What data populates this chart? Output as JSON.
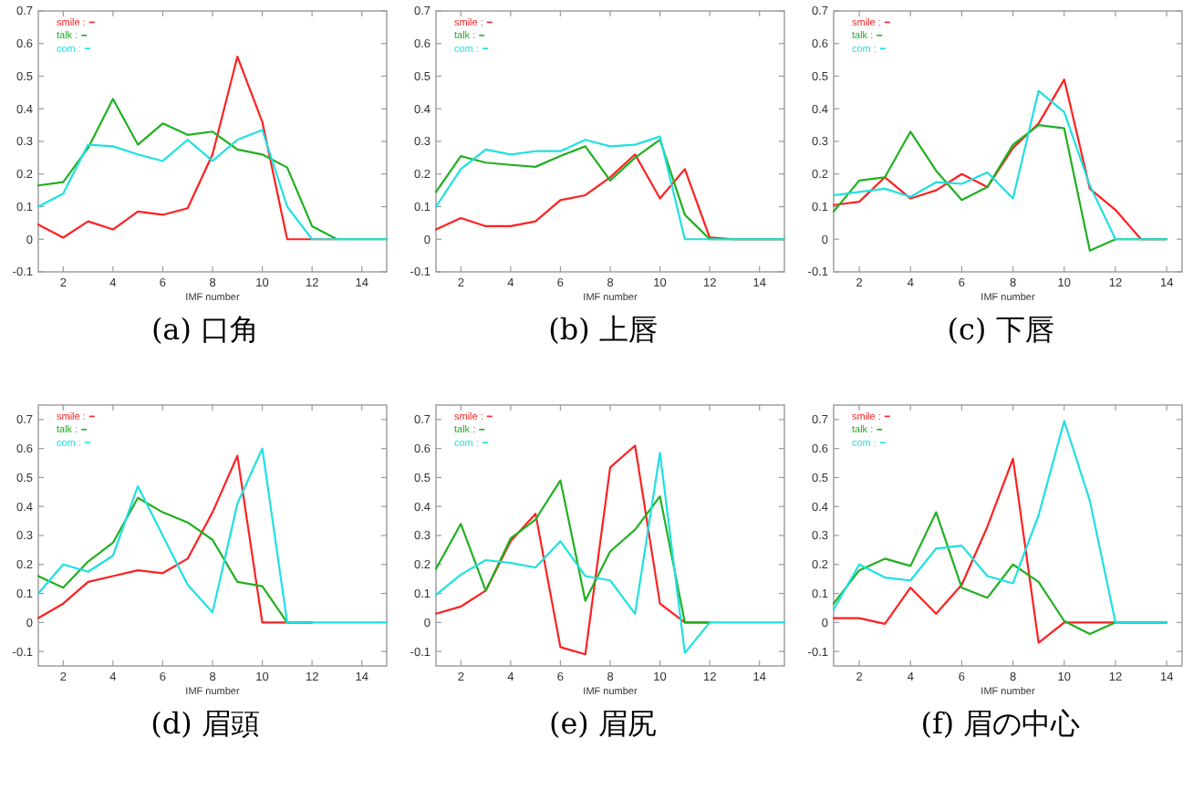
{
  "chart_data": [
    {
      "type": "line",
      "title": "(a) 口角",
      "xlabel": "IMF number",
      "legend": "top left",
      "xlim": [
        1,
        15
      ],
      "xticks": [
        2,
        4,
        6,
        8,
        10,
        12,
        14
      ],
      "ylim": [
        -0.1,
        0.7
      ],
      "yticks": [
        -0.1,
        0,
        0.1,
        0.2,
        0.3,
        0.4,
        0.5,
        0.6,
        0.7
      ],
      "x": [
        1,
        2,
        3,
        4,
        5,
        6,
        7,
        8,
        9,
        10,
        11,
        12,
        13,
        14,
        15
      ],
      "series": [
        {
          "name": "smile :",
          "color": "#ff2020",
          "values": [
            0.045,
            0.005,
            0.055,
            0.03,
            0.085,
            0.075,
            0.095,
            0.26,
            0.56,
            0.36,
            0,
            0,
            0,
            null,
            null
          ]
        },
        {
          "name": "talk :",
          "color": "#20b020",
          "values": [
            0.165,
            0.175,
            0.28,
            0.43,
            0.29,
            0.355,
            0.32,
            0.33,
            0.275,
            0.26,
            0.22,
            0.04,
            0,
            0,
            0
          ]
        },
        {
          "name": "com :",
          "color": "#20e0e0",
          "values": [
            0.1,
            0.14,
            0.29,
            0.285,
            0.26,
            0.24,
            0.305,
            0.24,
            0.305,
            0.335,
            0.1,
            0,
            0,
            0,
            0
          ]
        }
      ]
    },
    {
      "type": "line",
      "title": "(b) 上唇",
      "xlabel": "IMF number",
      "legend": "top left",
      "xlim": [
        1,
        15
      ],
      "xticks": [
        2,
        4,
        6,
        8,
        10,
        12,
        14
      ],
      "ylim": [
        -0.1,
        0.7
      ],
      "yticks": [
        -0.1,
        0,
        0.1,
        0.2,
        0.3,
        0.4,
        0.5,
        0.6,
        0.7
      ],
      "x": [
        1,
        2,
        3,
        4,
        5,
        6,
        7,
        8,
        9,
        10,
        11,
        12,
        13,
        14,
        15
      ],
      "series": [
        {
          "name": "smile :",
          "color": "#ff2020",
          "values": [
            0.03,
            0.065,
            0.04,
            0.04,
            0.055,
            0.12,
            0.135,
            0.19,
            0.26,
            0.125,
            0.215,
            0.005,
            0,
            0,
            0
          ]
        },
        {
          "name": "talk :",
          "color": "#20b020",
          "values": [
            0.145,
            0.255,
            0.235,
            0.228,
            0.222,
            0.255,
            0.285,
            0.18,
            0.25,
            0.305,
            0.075,
            0,
            0,
            0,
            0
          ]
        },
        {
          "name": "com :",
          "color": "#20e0e0",
          "values": [
            0.1,
            0.215,
            0.275,
            0.26,
            0.27,
            0.27,
            0.305,
            0.285,
            0.29,
            0.315,
            0,
            0,
            0,
            0,
            0
          ]
        }
      ]
    },
    {
      "type": "line",
      "title": "(c) 下唇",
      "xlabel": "IMF number",
      "legend": "top left",
      "xlim": [
        1,
        14.6
      ],
      "xticks": [
        2,
        4,
        6,
        8,
        10,
        12,
        14
      ],
      "ylim": [
        -0.1,
        0.7
      ],
      "yticks": [
        -0.1,
        0,
        0.1,
        0.2,
        0.3,
        0.4,
        0.5,
        0.6,
        0.7
      ],
      "x": [
        1,
        2,
        3,
        4,
        5,
        6,
        7,
        8,
        9,
        10,
        11,
        12,
        13,
        14
      ],
      "series": [
        {
          "name": "smile :",
          "color": "#ff2020",
          "values": [
            0.105,
            0.115,
            0.19,
            0.125,
            0.15,
            0.2,
            0.16,
            0.28,
            0.355,
            0.49,
            0.155,
            0.09,
            0,
            0
          ]
        },
        {
          "name": "talk :",
          "color": "#20b020",
          "values": [
            0.085,
            0.18,
            0.19,
            0.33,
            0.21,
            0.12,
            0.16,
            0.29,
            0.35,
            0.34,
            -0.035,
            0,
            0,
            0
          ]
        },
        {
          "name": "com :",
          "color": "#20e0e0",
          "values": [
            0.135,
            0.145,
            0.155,
            0.13,
            0.175,
            0.17,
            0.205,
            0.125,
            0.455,
            0.39,
            0.165,
            0,
            0,
            0
          ]
        }
      ]
    },
    {
      "type": "line",
      "title": "(d) 眉頭",
      "xlabel": "IMF number",
      "legend": "top left",
      "xlim": [
        1,
        15
      ],
      "xticks": [
        2,
        4,
        6,
        8,
        10,
        12,
        14
      ],
      "ylim": [
        -0.15,
        0.75
      ],
      "yticks": [
        -0.1,
        0,
        0.1,
        0.2,
        0.3,
        0.4,
        0.5,
        0.6,
        0.7
      ],
      "x": [
        1,
        2,
        3,
        4,
        5,
        6,
        7,
        8,
        9,
        10,
        11,
        12,
        13,
        14,
        15
      ],
      "series": [
        {
          "name": "smile :",
          "color": "#ff2020",
          "values": [
            0.015,
            0.065,
            0.14,
            0.16,
            0.18,
            0.17,
            0.22,
            0.38,
            0.575,
            0,
            0,
            0,
            null,
            null,
            null
          ]
        },
        {
          "name": "talk :",
          "color": "#20b020",
          "values": [
            0.16,
            0.12,
            0.21,
            0.275,
            0.43,
            0.38,
            0.345,
            0.285,
            0.14,
            0.125,
            0,
            0,
            null,
            null,
            null
          ]
        },
        {
          "name": "com :",
          "color": "#20e0e0",
          "values": [
            0.1,
            0.2,
            0.175,
            0.23,
            0.47,
            0.3,
            0.13,
            0.035,
            0.41,
            0.6,
            0,
            0,
            0,
            0,
            0
          ]
        }
      ]
    },
    {
      "type": "line",
      "title": "(e) 眉尻",
      "xlabel": "IMF number",
      "legend": "top left",
      "xlim": [
        1,
        15
      ],
      "xticks": [
        2,
        4,
        6,
        8,
        10,
        12,
        14
      ],
      "ylim": [
        -0.15,
        0.75
      ],
      "yticks": [
        -0.1,
        0,
        0.1,
        0.2,
        0.3,
        0.4,
        0.5,
        0.6,
        0.7
      ],
      "x": [
        1,
        2,
        3,
        4,
        5,
        6,
        7,
        8,
        9,
        10,
        11,
        12,
        13,
        14,
        15
      ],
      "series": [
        {
          "name": "smile :",
          "color": "#ff2020",
          "values": [
            0.03,
            0.055,
            0.11,
            0.28,
            0.375,
            -0.085,
            -0.11,
            0.535,
            0.61,
            0.065,
            0,
            0,
            null,
            null,
            null
          ]
        },
        {
          "name": "talk :",
          "color": "#20b020",
          "values": [
            0.185,
            0.34,
            0.11,
            0.29,
            0.355,
            0.49,
            0.075,
            0.245,
            0.32,
            0.435,
            0,
            0,
            null,
            null,
            null
          ]
        },
        {
          "name": "com :",
          "color": "#20e0e0",
          "values": [
            0.095,
            0.165,
            0.215,
            0.205,
            0.19,
            0.28,
            0.16,
            0.145,
            0.03,
            0.585,
            -0.105,
            0,
            0,
            0,
            0
          ]
        }
      ]
    },
    {
      "type": "line",
      "title": "(f) 眉の中心",
      "xlabel": "IMF number",
      "legend": "top left",
      "xlim": [
        1,
        14.6
      ],
      "xticks": [
        2,
        4,
        6,
        8,
        10,
        12,
        14
      ],
      "ylim": [
        -0.15,
        0.75
      ],
      "yticks": [
        -0.1,
        0,
        0.1,
        0.2,
        0.3,
        0.4,
        0.5,
        0.6,
        0.7
      ],
      "x": [
        1,
        2,
        3,
        4,
        5,
        6,
        7,
        8,
        9,
        10,
        11,
        12,
        13,
        14
      ],
      "series": [
        {
          "name": "smile :",
          "color": "#ff2020",
          "values": [
            0.015,
            0.015,
            -0.005,
            0.12,
            0.03,
            0.13,
            0.33,
            0.565,
            -0.07,
            0,
            0,
            0,
            0,
            0
          ]
        },
        {
          "name": "talk :",
          "color": "#20b020",
          "values": [
            0.065,
            0.18,
            0.22,
            0.195,
            0.38,
            0.12,
            0.085,
            0.2,
            0.14,
            0.005,
            -0.04,
            0,
            0,
            0
          ]
        },
        {
          "name": "com :",
          "color": "#20e0e0",
          "values": [
            0.045,
            0.2,
            0.155,
            0.145,
            0.255,
            0.265,
            0.16,
            0.135,
            0.37,
            0.695,
            0.42,
            0,
            0,
            0
          ]
        }
      ]
    }
  ]
}
